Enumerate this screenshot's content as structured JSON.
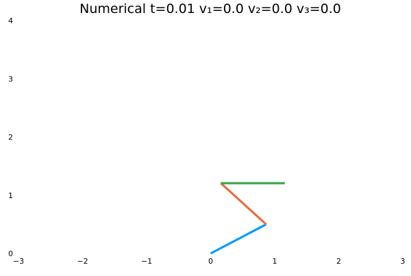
{
  "chart_data": {
    "type": "line",
    "title": "Numerical t=0.01  v₁=0.0 v₂=0.0 v₃=0.0",
    "xlabel": "",
    "ylabel": "",
    "xlim": [
      -3,
      3
    ],
    "ylim": [
      0,
      4
    ],
    "xticks": [
      -3,
      -2,
      -1,
      0,
      1,
      2,
      3
    ],
    "yticks": [
      0,
      1,
      2,
      3,
      4
    ],
    "xtick_labels": [
      "−3",
      "−2",
      "−1",
      "0",
      "1",
      "2",
      "3"
    ],
    "ytick_labels": [
      "0",
      "1",
      "2",
      "3",
      "4"
    ],
    "grid": false,
    "legend": "none",
    "series": [
      {
        "color": "#009AFA",
        "x": [
          0,
          0.866
        ],
        "y": [
          0,
          0.5
        ]
      },
      {
        "color": "#E36F47",
        "x": [
          0.866,
          0.159
        ],
        "y": [
          0.5,
          1.207
        ]
      },
      {
        "color": "#3EA44E",
        "x": [
          0.159,
          1.159
        ],
        "y": [
          1.207,
          1.207
        ]
      }
    ]
  }
}
